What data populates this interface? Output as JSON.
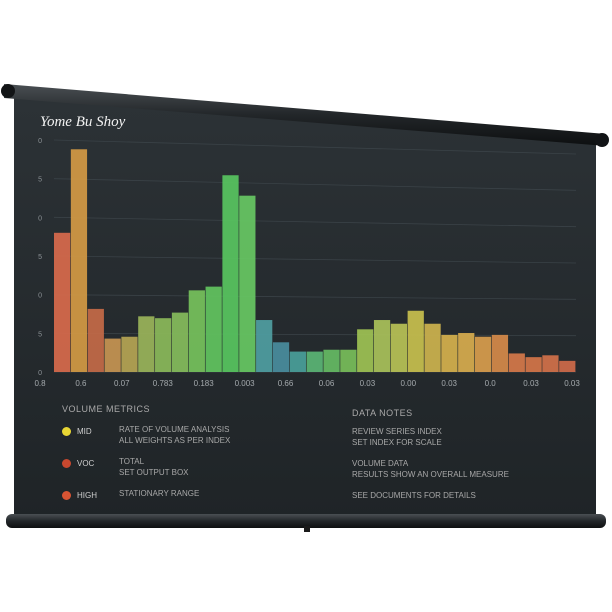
{
  "chart_data": {
    "type": "bar",
    "title": "Yome Bu Shoy",
    "xlabel": "",
    "ylabel": "",
    "y_tick_labels": [
      "0",
      "5",
      "0",
      "5",
      "0",
      "5",
      "0"
    ],
    "x_tick_labels": [
      "0.8",
      "0.6",
      "0.07",
      "0.783",
      "0.183",
      "0.003",
      "0.66",
      "0.06",
      "0.03",
      "0.00",
      "0.03",
      "0.0",
      "0.03",
      "0.03"
    ],
    "grid": true,
    "legend_position": "bottom-left",
    "values": [
      75,
      120,
      34,
      18,
      19,
      30,
      29,
      32,
      44,
      46,
      106,
      95,
      28,
      16,
      11,
      11,
      12,
      12,
      23,
      28,
      26,
      33,
      26,
      20,
      21,
      19,
      20,
      10,
      8,
      9,
      6
    ],
    "bar_colors": [
      "#d86a4c",
      "#d49a44",
      "#c46a48",
      "#c79552",
      "#b6a554",
      "#9ab45a",
      "#8bba5a",
      "#86bd5c",
      "#76c25c",
      "#62c460",
      "#58c65f",
      "#67c863",
      "#4f9ea2",
      "#4a8d9e",
      "#4aa09a",
      "#5bb575",
      "#66bb64",
      "#78be5a",
      "#9ec254",
      "#a9c15a",
      "#b8c256",
      "#c8c04e",
      "#cdb34e",
      "#d6b14d",
      "#d8ad4e",
      "#d99d4d",
      "#d68a4a",
      "#d6784a",
      "#d57549",
      "#d3714a",
      "#cf6a4a"
    ]
  },
  "legend": {
    "heading": "VOLUME METRICS",
    "items": [
      {
        "name": "MID",
        "color": "#e8d634",
        "lines": [
          "RATE OF VOLUME ANALYSIS",
          "ALL WEIGHTS AS PER INDEX"
        ]
      },
      {
        "name": "VOC",
        "color": "#c8482f",
        "lines": [
          "TOTAL",
          "SET OUTPUT BOX"
        ]
      },
      {
        "name": "HIGH",
        "color": "#d85433",
        "lines": [
          "STATIONARY RANGE"
        ]
      }
    ]
  },
  "notes": {
    "heading": "DATA NOTES",
    "lines": [
      "REVIEW SERIES INDEX",
      "SET INDEX FOR SCALE",
      "",
      "VOLUME DATA",
      "RESULTS SHOW AN OVERALL MEASURE",
      "",
      "SEE DOCUMENTS FOR DETAILS"
    ]
  }
}
